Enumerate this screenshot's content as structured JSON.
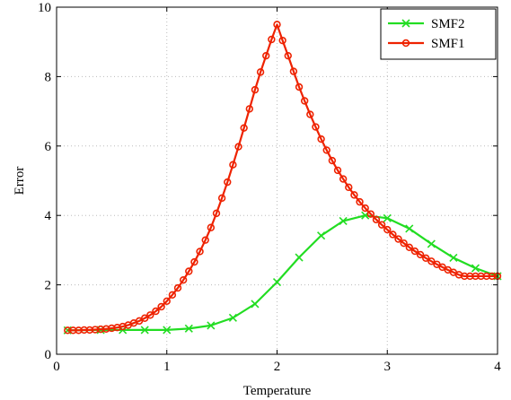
{
  "chart_data": {
    "type": "line",
    "title": "",
    "xlabel": "Temperature",
    "ylabel": "Error",
    "xlim": [
      0,
      4
    ],
    "ylim": [
      0,
      10
    ],
    "xticks": [
      "0",
      "1",
      "2",
      "3",
      "4"
    ],
    "yticks": [
      "0",
      "2",
      "4",
      "6",
      "8",
      "10"
    ],
    "grid": true,
    "legend_position": "top-right",
    "series": [
      {
        "name": "SMF2",
        "color": "#22dd22",
        "marker": "x",
        "x": [
          0.1,
          0.4,
          0.6,
          0.8,
          1.0,
          1.2,
          1.4,
          1.6,
          1.8,
          2.0,
          2.2,
          2.4,
          2.6,
          2.8,
          3.0,
          3.2,
          3.4,
          3.6,
          3.8,
          4.0
        ],
        "y": [
          0.69,
          0.7,
          0.7,
          0.7,
          0.7,
          0.74,
          0.83,
          1.05,
          1.45,
          2.08,
          2.79,
          3.42,
          3.84,
          4.0,
          3.92,
          3.62,
          3.18,
          2.78,
          2.48,
          2.25
        ]
      },
      {
        "name": "SMF1",
        "color": "#ee2200",
        "marker": "o",
        "x": [
          0.1,
          0.15,
          0.2,
          0.25,
          0.3,
          0.35,
          0.4,
          0.45,
          0.5,
          0.55,
          0.6,
          0.65,
          0.7,
          0.75,
          0.8,
          0.85,
          0.9,
          0.95,
          1.0,
          1.05,
          1.1,
          1.15,
          1.2,
          1.25,
          1.3,
          1.35,
          1.4,
          1.45,
          1.5,
          1.55,
          1.6,
          1.65,
          1.7,
          1.75,
          1.8,
          1.85,
          1.9,
          1.95,
          2.0,
          2.05,
          2.1,
          2.15,
          2.2,
          2.25,
          2.3,
          2.35,
          2.4,
          2.45,
          2.5,
          2.55,
          2.6,
          2.65,
          2.7,
          2.75,
          2.8,
          2.85,
          2.9,
          2.95,
          3.0,
          3.05,
          3.1,
          3.15,
          3.2,
          3.25,
          3.3,
          3.35,
          3.4,
          3.45,
          3.5,
          3.55,
          3.6,
          3.65,
          3.7,
          3.75,
          3.8,
          3.85,
          3.9,
          3.95,
          4.0
        ],
        "y": [
          0.69,
          0.69,
          0.69,
          0.7,
          0.7,
          0.71,
          0.72,
          0.73,
          0.75,
          0.77,
          0.8,
          0.84,
          0.9,
          0.96,
          1.04,
          1.13,
          1.24,
          1.37,
          1.53,
          1.71,
          1.91,
          2.14,
          2.39,
          2.66,
          2.96,
          3.29,
          3.65,
          4.06,
          4.5,
          4.96,
          5.46,
          5.98,
          6.52,
          7.07,
          7.62,
          8.13,
          8.6,
          9.07,
          9.5,
          9.04,
          8.6,
          8.15,
          7.7,
          7.3,
          6.91,
          6.55,
          6.2,
          5.88,
          5.58,
          5.3,
          5.05,
          4.81,
          4.59,
          4.39,
          4.21,
          4.04,
          3.88,
          3.73,
          3.59,
          3.45,
          3.32,
          3.2,
          3.08,
          2.97,
          2.87,
          2.77,
          2.68,
          2.59,
          2.51,
          2.43,
          2.36,
          2.29,
          2.25,
          2.25,
          2.25,
          2.25,
          2.25,
          2.25,
          2.25
        ]
      }
    ]
  }
}
